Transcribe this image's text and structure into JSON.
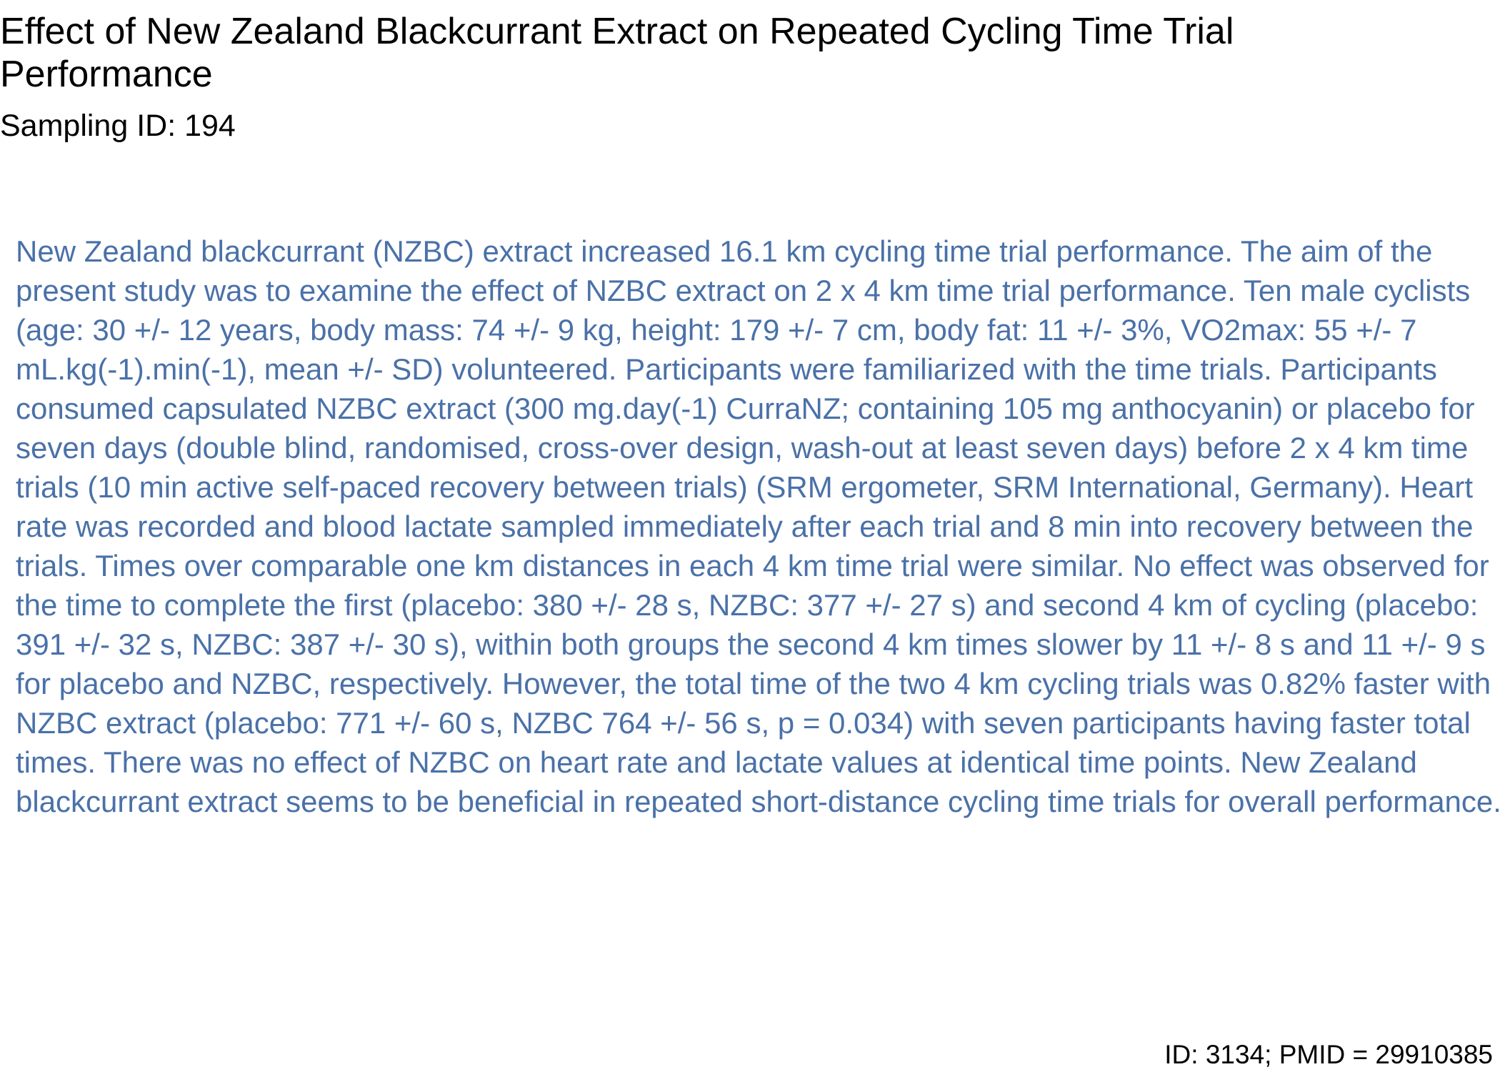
{
  "document": {
    "title": "Effect of New Zealand Blackcurrant Extract on Repeated Cycling Time Trial Performance",
    "subtitle": "Sampling ID: 194",
    "abstract": "New Zealand blackcurrant (NZBC) extract increased 16.1 km cycling time trial performance. The aim of the present study was to examine the effect of NZBC extract on 2 x 4 km time trial performance. Ten male cyclists (age: 30 +/- 12 years, body mass: 74 +/- 9 kg, height: 179 +/- 7 cm, body fat: 11 +/- 3%, VO2max: 55 +/- 7 mL.kg(-1).min(-1), mean +/- SD) volunteered. Participants were familiarized with the time trials. Participants consumed capsulated NZBC extract (300 mg.day(-1) CurraNZ; containing 105 mg anthocyanin) or placebo for seven days (double blind, randomised, cross-over design, wash-out at least seven days) before 2 x 4 km time trials (10 min active self-paced recovery between trials) (SRM ergometer, SRM International, Germany). Heart rate was recorded and blood lactate sampled immediately after each trial and 8 min into recovery between the trials. Times over comparable one km distances in each 4 km time trial were similar. No effect was observed for the time to complete the first (placebo: 380 +/- 28 s, NZBC: 377 +/- 27 s) and second 4 km of cycling (placebo: 391 +/- 32 s, NZBC: 387 +/- 30 s), within both groups the second 4 km times slower by 11 +/- 8 s and 11 +/- 9 s for placebo and NZBC, respectively. However, the total time of the two 4 km cycling trials was 0.82% faster with NZBC extract (placebo: 771 +/- 60 s, NZBC 764 +/- 56 s, p = 0.034) with seven participants having faster total times. There was no effect of NZBC on heart rate and lactate values at identical time points. New Zealand blackcurrant extract seems to be beneficial in repeated short-distance cycling time trials for overall performance.",
    "footer": "ID: 3134; PMID = 29910385"
  },
  "colors": {
    "title_text": "#000000",
    "abstract_text": "#4a71a8",
    "background": "#ffffff"
  }
}
